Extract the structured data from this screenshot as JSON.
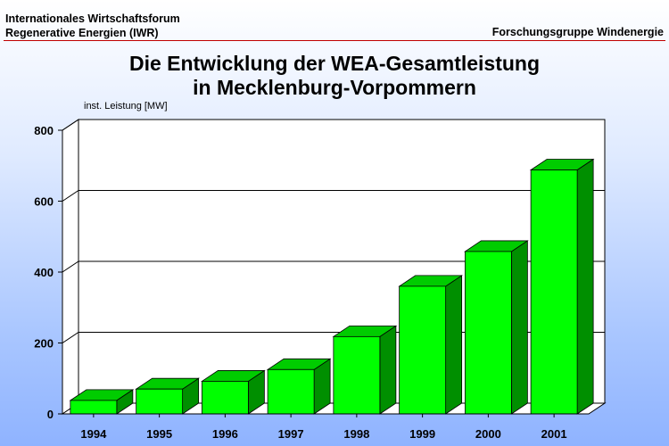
{
  "header": {
    "org_line1": "Internationales Wirtschaftsforum",
    "org_line2": "Regenerative Energien (IWR)",
    "group": "Forschungsgruppe Windenergie"
  },
  "chart_data": {
    "type": "bar",
    "title_line1": "Die Entwicklung der WEA-Gesamtleistung",
    "title_line2": "in Mecklenburg-Vorpommern",
    "ylabel": "inst. Leistung [MW]",
    "xlabel": "",
    "categories": [
      "1994",
      "1995",
      "1996",
      "1997",
      "1998",
      "1999",
      "2000",
      "2001"
    ],
    "values": [
      38,
      70,
      92,
      125,
      218,
      360,
      458,
      688
    ],
    "ylim": [
      0,
      800
    ],
    "yticks": [
      "0",
      "200",
      "400",
      "600",
      "800"
    ],
    "grid": true,
    "three_d": true,
    "colors": {
      "bar_front": "#00ff00",
      "bar_top": "#00cc00",
      "bar_side": "#008f00",
      "axis": "#000000"
    }
  }
}
